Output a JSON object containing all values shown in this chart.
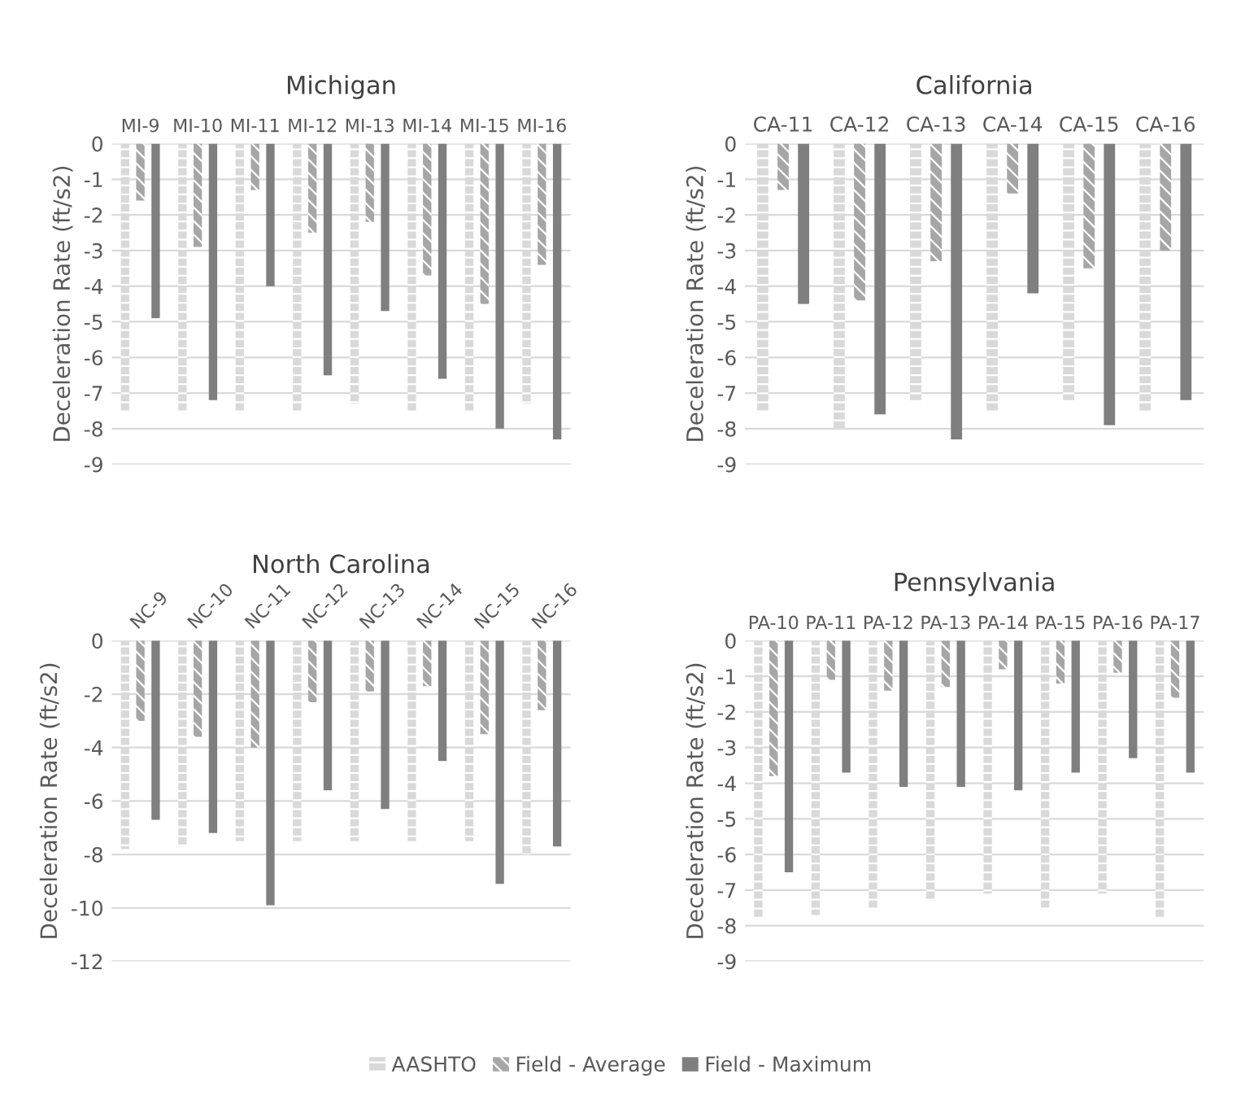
{
  "chart_data": [
    {
      "type": "bar",
      "title": "Michigan",
      "ylabel": "Deceleration Rate (ft/s2)",
      "categories": [
        "MI-9",
        "MI-10",
        "MI-11",
        "MI-12",
        "MI-13",
        "MI-14",
        "MI-15",
        "MI-16"
      ],
      "ylim": [
        -9,
        0
      ],
      "yticks": [
        0,
        -1,
        -2,
        -3,
        -4,
        -5,
        -6,
        -7,
        -8,
        -9
      ],
      "grid": "y",
      "legend": "bottom",
      "series": [
        {
          "name": "AASHTO",
          "color": "#d9d9d9",
          "values": [
            -7.5,
            -7.5,
            -7.5,
            -7.5,
            -7.3,
            -7.5,
            -7.5,
            -7.3
          ]
        },
        {
          "name": "Field - Average",
          "color": "#a6a6a6",
          "values": [
            -1.6,
            -2.9,
            -1.3,
            -2.5,
            -2.2,
            -3.7,
            -4.5,
            -3.4
          ]
        },
        {
          "name": "Field - Maximum",
          "color": "#7f7f7f",
          "values": [
            -4.9,
            -7.2,
            -4.0,
            -6.5,
            -4.7,
            -6.6,
            -8.0,
            -8.3
          ]
        }
      ]
    },
    {
      "type": "bar",
      "title": "California",
      "ylabel": "Deceleration Rate (ft/s2)",
      "categories": [
        "CA-11",
        "CA-12",
        "CA-13",
        "CA-14",
        "CA-15",
        "CA-16"
      ],
      "ylim": [
        -9,
        0
      ],
      "yticks": [
        0,
        -1,
        -2,
        -3,
        -4,
        -5,
        -6,
        -7,
        -8,
        -9
      ],
      "grid": "y",
      "series": [
        {
          "color": "#d9d9d9",
          "values": [
            -7.5,
            -8.0,
            -7.2,
            -7.5,
            -7.2,
            -7.5
          ]
        },
        {
          "color": "#a6a6a6",
          "values": [
            -1.3,
            -4.4,
            -3.3,
            -1.4,
            -3.5,
            -3.0
          ]
        },
        {
          "color": "#7f7f7f",
          "values": [
            -4.5,
            -7.6,
            -8.3,
            -4.2,
            -7.9,
            -7.2
          ]
        }
      ]
    },
    {
      "type": "bar",
      "title": "North Carolina",
      "ylabel": "Deceleration Rate (ft/s2)",
      "categories": [
        "NC-9",
        "NC-10",
        "NC-11",
        "NC-12",
        "NC-13",
        "NC-14",
        "NC-15",
        "NC-16"
      ],
      "ylim": [
        -12,
        0
      ],
      "yticks": [
        0,
        -2,
        -4,
        -6,
        -8,
        -10,
        -12
      ],
      "grid": "y",
      "series": [
        {
          "color": "#d9d9d9",
          "values": [
            -7.8,
            -7.7,
            -7.5,
            -7.5,
            -7.5,
            -7.5,
            -7.5,
            -8.0
          ]
        },
        {
          "color": "#a6a6a6",
          "values": [
            -3.0,
            -3.6,
            -4.0,
            -2.3,
            -1.9,
            -1.7,
            -3.5,
            -2.6
          ]
        },
        {
          "color": "#7f7f7f",
          "values": [
            -6.7,
            -7.2,
            -9.9,
            -5.6,
            -6.3,
            -4.5,
            -9.1,
            -7.7
          ]
        }
      ]
    },
    {
      "type": "bar",
      "title": "Pennsylvania",
      "ylabel": "Deceleration Rate (ft/s2)",
      "categories": [
        "PA-10",
        "PA-11",
        "PA-12",
        "PA-13",
        "PA-14",
        "PA-15",
        "PA-16",
        "PA-17"
      ],
      "ylim": [
        -9,
        0
      ],
      "yticks": [
        0,
        -1,
        -2,
        -3,
        -4,
        -5,
        -6,
        -7,
        -8,
        -9
      ],
      "grid": "y",
      "series": [
        {
          "color": "#d9d9d9",
          "values": [
            -7.8,
            -7.7,
            -7.5,
            -7.3,
            -7.1,
            -7.5,
            -7.1,
            -7.8
          ]
        },
        {
          "color": "#a6a6a6",
          "values": [
            -3.8,
            -1.1,
            -1.4,
            -1.3,
            -0.8,
            -1.2,
            -0.9,
            -1.6
          ]
        },
        {
          "color": "#7f7f7f",
          "values": [
            -6.5,
            -3.7,
            -4.1,
            -4.1,
            -4.2,
            -3.7,
            -3.3,
            -3.7
          ]
        }
      ]
    }
  ]
}
